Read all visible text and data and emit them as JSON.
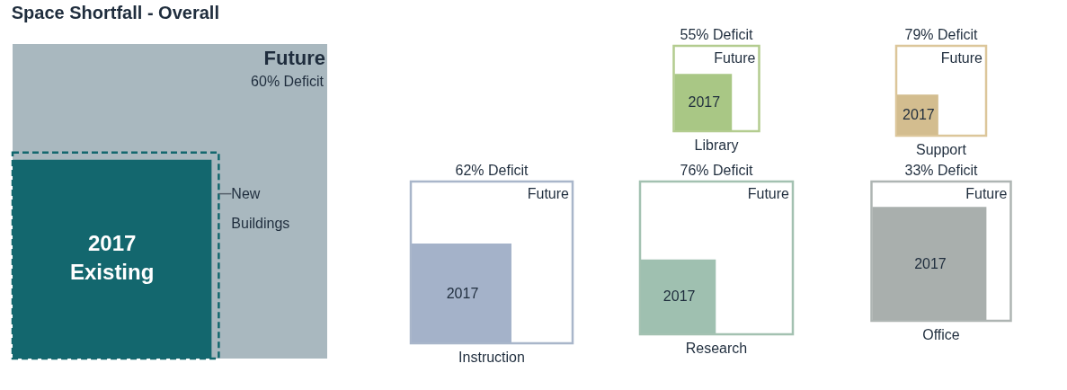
{
  "chart_data": [
    {
      "type": "other",
      "title": "Space Shortfall - Overall",
      "categories": [
        null
      ],
      "values": [
        60
      ],
      "value_labels": [
        "60% Deficit"
      ],
      "annotations": [
        "Future",
        "2017",
        "Existing",
        "New Buildings"
      ],
      "color": "#13676e",
      "colors": [
        "#a9b8bf"
      ]
    },
    {
      "type": "other",
      "xlabel": "Library",
      "categories": [
        null
      ],
      "values": [
        55
      ],
      "value_labels": [
        "55% Deficit"
      ],
      "annotations": [
        "Future",
        "2017"
      ],
      "color": "#b3cc8f",
      "colors": [
        "#a9c785"
      ]
    },
    {
      "type": "other",
      "xlabel": "Support",
      "categories": [
        null
      ],
      "values": [
        79
      ],
      "value_labels": [
        "79% Deficit"
      ],
      "annotations": [
        "Future",
        "2017"
      ],
      "color": "#dcc69a",
      "colors": [
        "#d3bd8f"
      ]
    },
    {
      "type": "other",
      "xlabel": "Instruction",
      "categories": [
        null
      ],
      "values": [
        62
      ],
      "value_labels": [
        "62% Deficit"
      ],
      "annotations": [
        "Future",
        "2017"
      ],
      "color": "#a9b6ca",
      "colors": [
        "#a4b2c9"
      ]
    },
    {
      "type": "other",
      "xlabel": "Research",
      "categories": [
        null
      ],
      "values": [
        76
      ],
      "value_labels": [
        "76% Deficit"
      ],
      "annotations": [
        "Future",
        "2017"
      ],
      "color": "#a3c1b1",
      "colors": [
        "#9fc0b0"
      ]
    },
    {
      "type": "other",
      "xlabel": "Office",
      "categories": [
        null
      ],
      "values": [
        33
      ],
      "value_labels": [
        "33% Deficit"
      ],
      "annotations": [
        "Future",
        "2017"
      ],
      "color": "#aeb5b3",
      "colors": [
        "#a9afad"
      ]
    }
  ]
}
